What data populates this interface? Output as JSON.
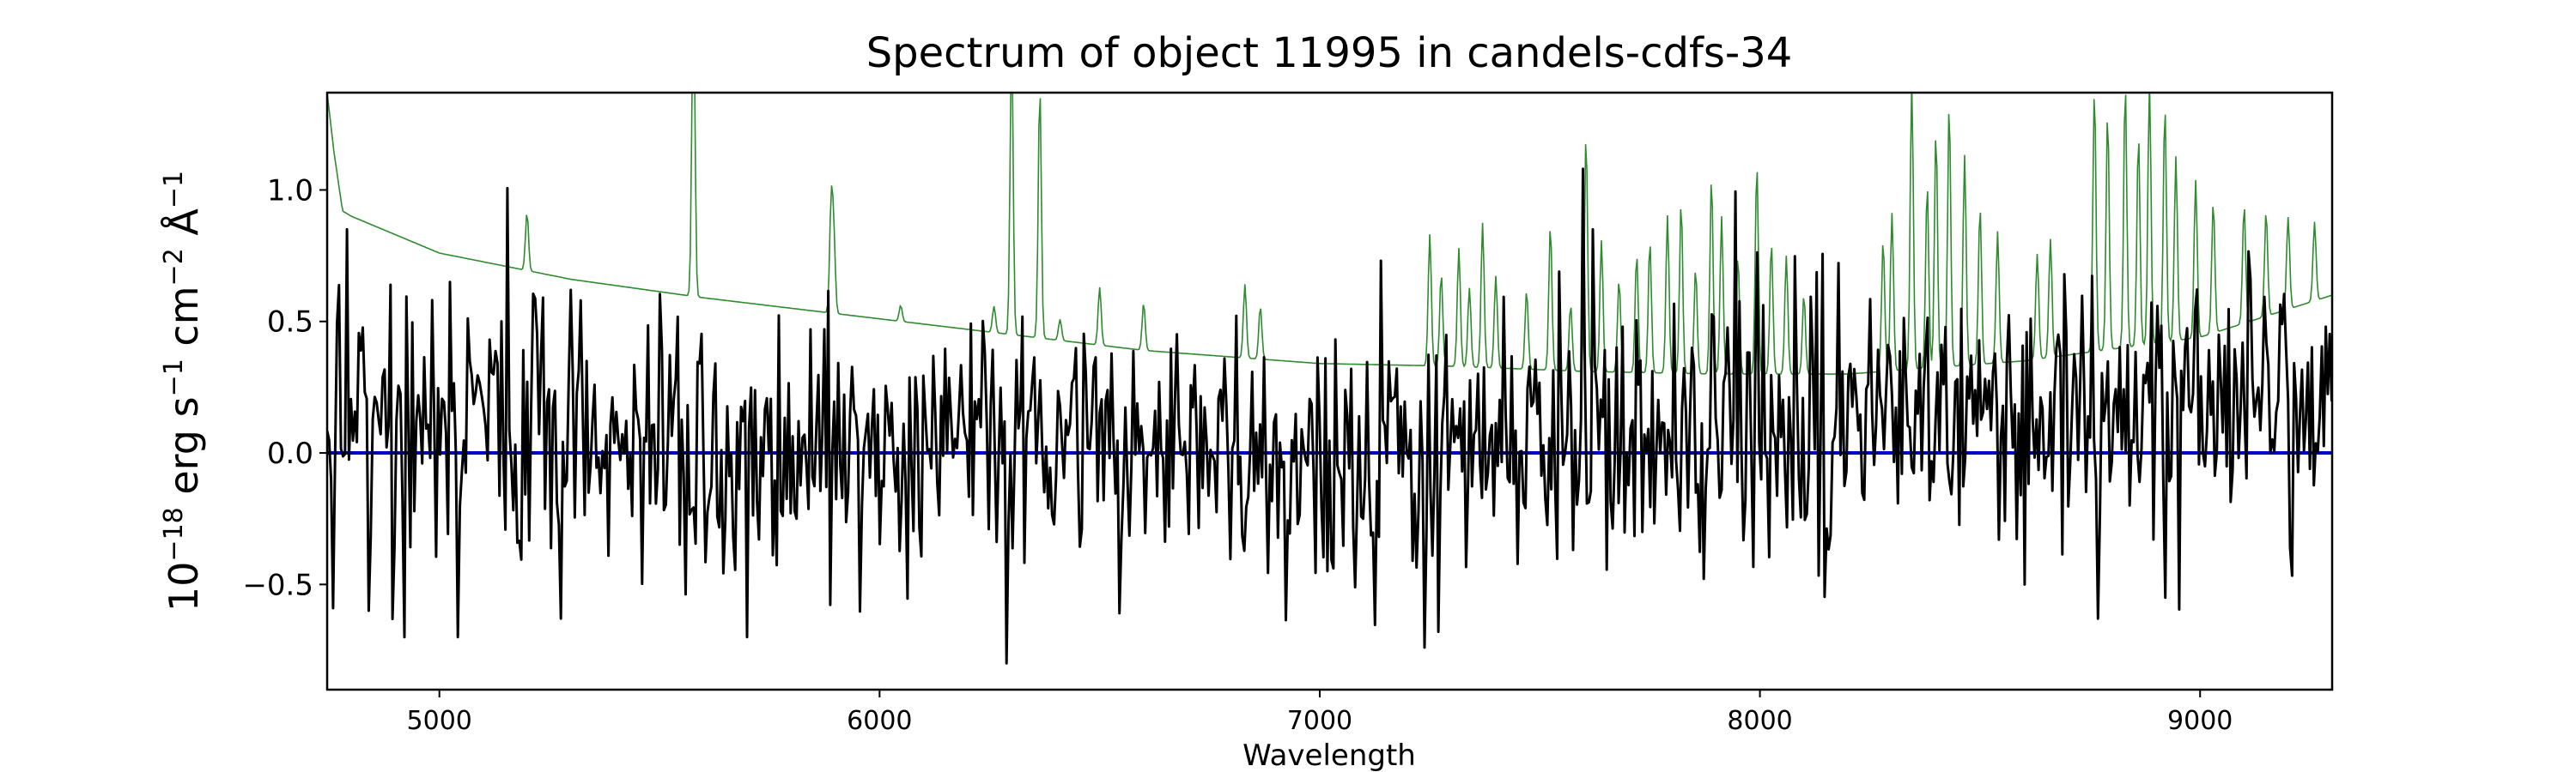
{
  "chart_data": {
    "type": "line",
    "title": "Spectrum of object 11995 in candels-cdfs-34",
    "xlabel": "Wavelength",
    "ylabel_parts": {
      "base": "10",
      "exp_base": "−18",
      "erg": " erg s",
      "exp_s": "−1",
      "cm": " cm",
      "exp_cm": "−2",
      "angstrom": " Å",
      "exp_angstrom": "−1"
    },
    "xlim": [
      4745,
      9300
    ],
    "ylim": [
      -0.9,
      1.37
    ],
    "xticks": [
      5000,
      6000,
      7000,
      8000,
      9000
    ],
    "xtick_labels": [
      "5000",
      "6000",
      "7000",
      "8000",
      "9000"
    ],
    "yticks": [
      -0.5,
      0.0,
      0.5,
      1.0
    ],
    "ytick_labels": [
      "−0.5",
      "0.0",
      "0.5",
      "1.0"
    ],
    "grid": false,
    "legend": "none",
    "series": [
      {
        "key": "error",
        "color": "#2e8b2e",
        "continuum": [
          [
            4745,
            1.37
          ],
          [
            4760,
            1.15
          ],
          [
            4780,
            0.92
          ],
          [
            4800,
            0.9
          ],
          [
            5000,
            0.76
          ],
          [
            5300,
            0.66
          ],
          [
            5600,
            0.59
          ],
          [
            6000,
            0.51
          ],
          [
            6300,
            0.45
          ],
          [
            6600,
            0.39
          ],
          [
            7000,
            0.34
          ],
          [
            7300,
            0.33
          ],
          [
            7600,
            0.31
          ],
          [
            7900,
            0.3
          ],
          [
            8200,
            0.3
          ],
          [
            8600,
            0.35
          ],
          [
            9000,
            0.44
          ],
          [
            9300,
            0.6
          ]
        ],
        "emission_lines": [
          [
            5199,
            0.22
          ],
          [
            5577,
            1.2
          ],
          [
            5890,
            0.4
          ],
          [
            5896,
            0.28
          ],
          [
            6048,
            0.06
          ],
          [
            6260,
            0.1
          ],
          [
            6300,
            1.1
          ],
          [
            6364,
            0.95
          ],
          [
            6410,
            0.08
          ],
          [
            6500,
            0.22
          ],
          [
            6600,
            0.18
          ],
          [
            6830,
            0.28
          ],
          [
            6865,
            0.2
          ],
          [
            7250,
            0.5
          ],
          [
            7276,
            0.35
          ],
          [
            7316,
            0.45
          ],
          [
            7340,
            0.3
          ],
          [
            7370,
            0.55
          ],
          [
            7400,
            0.35
          ],
          [
            7470,
            0.3
          ],
          [
            7524,
            0.55
          ],
          [
            7570,
            0.25
          ],
          [
            7605,
            0.9
          ],
          [
            7640,
            0.5
          ],
          [
            7680,
            0.35
          ],
          [
            7720,
            0.45
          ],
          [
            7750,
            0.5
          ],
          [
            7790,
            0.6
          ],
          [
            7821,
            0.65
          ],
          [
            7854,
            0.4
          ],
          [
            7890,
            0.75
          ],
          [
            7913,
            0.6
          ],
          [
            7950,
            0.45
          ],
          [
            7993,
            0.8
          ],
          [
            8026,
            0.5
          ],
          [
            8060,
            0.45
          ],
          [
            8100,
            0.3
          ],
          [
            8280,
            0.5
          ],
          [
            8300,
            0.6
          ],
          [
            8345,
            1.1
          ],
          [
            8380,
            0.7
          ],
          [
            8400,
            0.9
          ],
          [
            8430,
            1.0
          ],
          [
            8465,
            0.8
          ],
          [
            8500,
            0.6
          ],
          [
            8540,
            0.5
          ],
          [
            8630,
            0.4
          ],
          [
            8660,
            0.45
          ],
          [
            8760,
            1.0
          ],
          [
            8790,
            0.9
          ],
          [
            8830,
            1.0
          ],
          [
            8860,
            0.8
          ],
          [
            8885,
            1.0
          ],
          [
            8920,
            0.9
          ],
          [
            8945,
            0.7
          ],
          [
            8990,
            0.6
          ],
          [
            9030,
            0.5
          ],
          [
            9100,
            0.45
          ],
          [
            9150,
            0.4
          ],
          [
            9200,
            0.35
          ],
          [
            9260,
            0.3
          ]
        ]
      },
      {
        "key": "flux",
        "color": "#000000",
        "noise_seed": 11995,
        "noise_sigma": 0.25,
        "trend": [
          [
            4745,
            0.1
          ],
          [
            5500,
            0.02
          ],
          [
            6500,
            0.0
          ],
          [
            7000,
            0.0
          ],
          [
            7500,
            0.05
          ],
          [
            8000,
            0.1
          ],
          [
            8500,
            0.15
          ],
          [
            9000,
            0.18
          ],
          [
            9300,
            0.2
          ]
        ],
        "features": [
          [
            4757,
            -0.59
          ],
          [
            4790,
            0.85
          ],
          [
            4840,
            -0.6
          ],
          [
            4920,
            -0.7
          ],
          [
            5040,
            0.97
          ],
          [
            5042,
            -0.7
          ],
          [
            5300,
            0.62
          ],
          [
            5320,
            0.58
          ],
          [
            5700,
            -0.7
          ],
          [
            5873,
            0.47
          ],
          [
            6290,
            -0.8
          ],
          [
            7240,
            -0.74
          ],
          [
            7270,
            -0.68
          ],
          [
            7600,
            1.08
          ],
          [
            7620,
            0.85
          ],
          [
            8600,
            -0.5
          ],
          [
            8680,
            0.45
          ],
          [
            8920,
            -0.55
          ]
        ]
      },
      {
        "key": "zero",
        "color": "#0000cc",
        "points": [
          [
            4745,
            0.0
          ],
          [
            9300,
            0.0
          ]
        ]
      }
    ]
  }
}
